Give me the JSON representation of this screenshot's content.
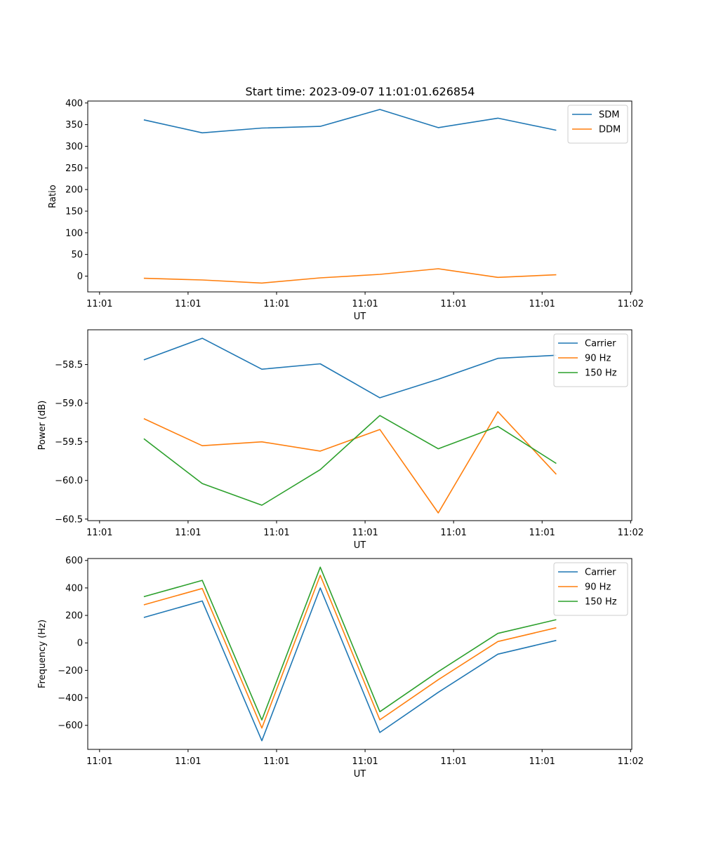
{
  "figure_title": "Start time: 2023-09-07 11:01:01.626854",
  "colors": {
    "c0": "#1f77b4",
    "c1": "#ff7f0e",
    "c2": "#2ca02c"
  },
  "chart_data": [
    {
      "type": "line",
      "xlabel": "UT",
      "ylabel": "Ratio",
      "x_tick_labels": [
        "11:01",
        "11:01",
        "11:01",
        "11:01",
        "11:01",
        "11:01",
        "11:02"
      ],
      "x_tick_positions": [
        -0.5,
        1,
        2.5,
        4,
        5.5,
        7,
        8.5
      ],
      "xlim": [
        -0.7,
        8.52
      ],
      "ylim": [
        -36.5,
        404.5
      ],
      "y_ticks": [
        0,
        50,
        100,
        150,
        200,
        250,
        300,
        350,
        400
      ],
      "y_tick_labels": [
        "0",
        "50",
        "100",
        "150",
        "200",
        "250",
        "300",
        "350",
        "400"
      ],
      "legend_position": "top-right",
      "x": [
        0.25,
        1.24,
        2.25,
        3.24,
        4.25,
        5.24,
        6.25,
        7.24
      ],
      "series": [
        {
          "name": "SDM",
          "color": "#1f77b4",
          "values": [
            361,
            331,
            342,
            346,
            385,
            343,
            365,
            337
          ]
        },
        {
          "name": "DDM",
          "color": "#ff7f0e",
          "values": [
            -5,
            -9,
            -16,
            -4,
            4,
            17,
            -3,
            3
          ]
        }
      ]
    },
    {
      "type": "line",
      "xlabel": "UT",
      "ylabel": "Power (dB)",
      "x_tick_labels": [
        "11:01",
        "11:01",
        "11:01",
        "11:01",
        "11:01",
        "11:01",
        "11:02"
      ],
      "x_tick_positions": [
        -0.5,
        1,
        2.5,
        4,
        5.5,
        7,
        8.5
      ],
      "xlim": [
        -0.7,
        8.52
      ],
      "ylim": [
        -60.52,
        -58.05
      ],
      "y_ticks": [
        -58.5,
        -59.0,
        -59.5,
        -60.0,
        -60.5
      ],
      "y_tick_labels": [
        "−58.5",
        "−59.0",
        "−59.5",
        "−60.0",
        "−60.5"
      ],
      "legend_position": "top-right",
      "x": [
        0.25,
        1.24,
        2.25,
        3.24,
        4.25,
        5.24,
        6.25,
        7.24
      ],
      "series": [
        {
          "name": "Carrier",
          "color": "#1f77b4",
          "values": [
            -58.44,
            -58.16,
            -58.56,
            -58.49,
            -58.93,
            -58.69,
            -58.42,
            -58.38
          ]
        },
        {
          "name": "90 Hz",
          "color": "#ff7f0e",
          "values": [
            -59.2,
            -59.55,
            -59.5,
            -59.62,
            -59.34,
            -60.42,
            -59.11,
            -59.92
          ]
        },
        {
          "name": "150 Hz",
          "color": "#2ca02c",
          "values": [
            -59.46,
            -60.04,
            -60.32,
            -59.86,
            -59.16,
            -59.59,
            -59.3,
            -59.78
          ]
        }
      ]
    },
    {
      "type": "line",
      "xlabel": "UT",
      "ylabel": "Frequency (Hz)",
      "x_tick_labels": [
        "11:01",
        "11:01",
        "11:01",
        "11:01",
        "11:01",
        "11:01",
        "11:02"
      ],
      "x_tick_positions": [
        -0.5,
        1,
        2.5,
        4,
        5.5,
        7,
        8.5
      ],
      "xlim": [
        -0.7,
        8.52
      ],
      "ylim": [
        -775,
        614
      ],
      "y_ticks": [
        600,
        400,
        200,
        0,
        -200,
        -400,
        -600
      ],
      "y_tick_labels": [
        "600",
        "400",
        "200",
        "0",
        "−200",
        "−400",
        "−600"
      ],
      "legend_position": "top-right",
      "x": [
        0.25,
        1.24,
        2.25,
        3.24,
        4.25,
        5.24,
        6.25,
        7.24
      ],
      "series": [
        {
          "name": "Carrier",
          "color": "#1f77b4",
          "values": [
            185,
            305,
            -712,
            400,
            -652,
            -360,
            -82,
            18
          ]
        },
        {
          "name": "90 Hz",
          "color": "#ff7f0e",
          "values": [
            277,
            396,
            -620,
            492,
            -560,
            -268,
            10,
            110
          ]
        },
        {
          "name": "150 Hz",
          "color": "#2ca02c",
          "values": [
            336,
            455,
            -561,
            551,
            -501,
            -209,
            69,
            169
          ]
        }
      ]
    }
  ]
}
